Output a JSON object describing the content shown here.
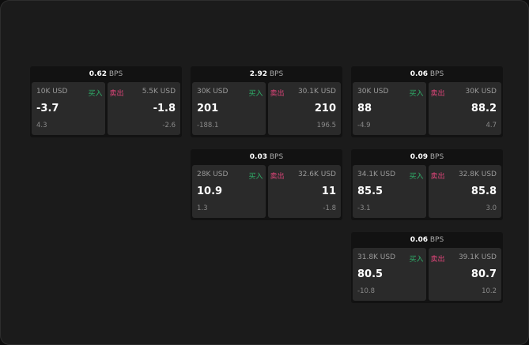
{
  "labels": {
    "buy": "买入",
    "sell": "卖出",
    "unit": "BPS"
  },
  "colors": {
    "buy": "#2fb06a",
    "sell": "#e0457a"
  },
  "cards": [
    {
      "spread": "0.62",
      "buy": {
        "size": "10K USD",
        "price": "-3.7",
        "change": "4.3"
      },
      "sell": {
        "size": "5.5K USD",
        "price": "-1.8",
        "change": "-2.6"
      }
    },
    {
      "spread": "2.92",
      "buy": {
        "size": "30K USD",
        "price": "201",
        "change": "-188.1"
      },
      "sell": {
        "size": "30.1K USD",
        "price": "210",
        "change": "196.5"
      }
    },
    {
      "spread": "0.06",
      "buy": {
        "size": "30K USD",
        "price": "88",
        "change": "-4.9"
      },
      "sell": {
        "size": "30K USD",
        "price": "88.2",
        "change": "4.7"
      }
    },
    {
      "spread": "0.03",
      "buy": {
        "size": "28K USD",
        "price": "10.9",
        "change": "1.3"
      },
      "sell": {
        "size": "32.6K USD",
        "price": "11",
        "change": "-1.8"
      }
    },
    {
      "spread": "0.09",
      "buy": {
        "size": "34.1K USD",
        "price": "85.5",
        "change": "-3.1"
      },
      "sell": {
        "size": "32.8K USD",
        "price": "85.8",
        "change": "3.0"
      }
    },
    {
      "spread": "0.06",
      "buy": {
        "size": "31.8K USD",
        "price": "80.5",
        "change": "-10.8"
      },
      "sell": {
        "size": "39.1K USD",
        "price": "80.7",
        "change": "10.2"
      }
    }
  ]
}
